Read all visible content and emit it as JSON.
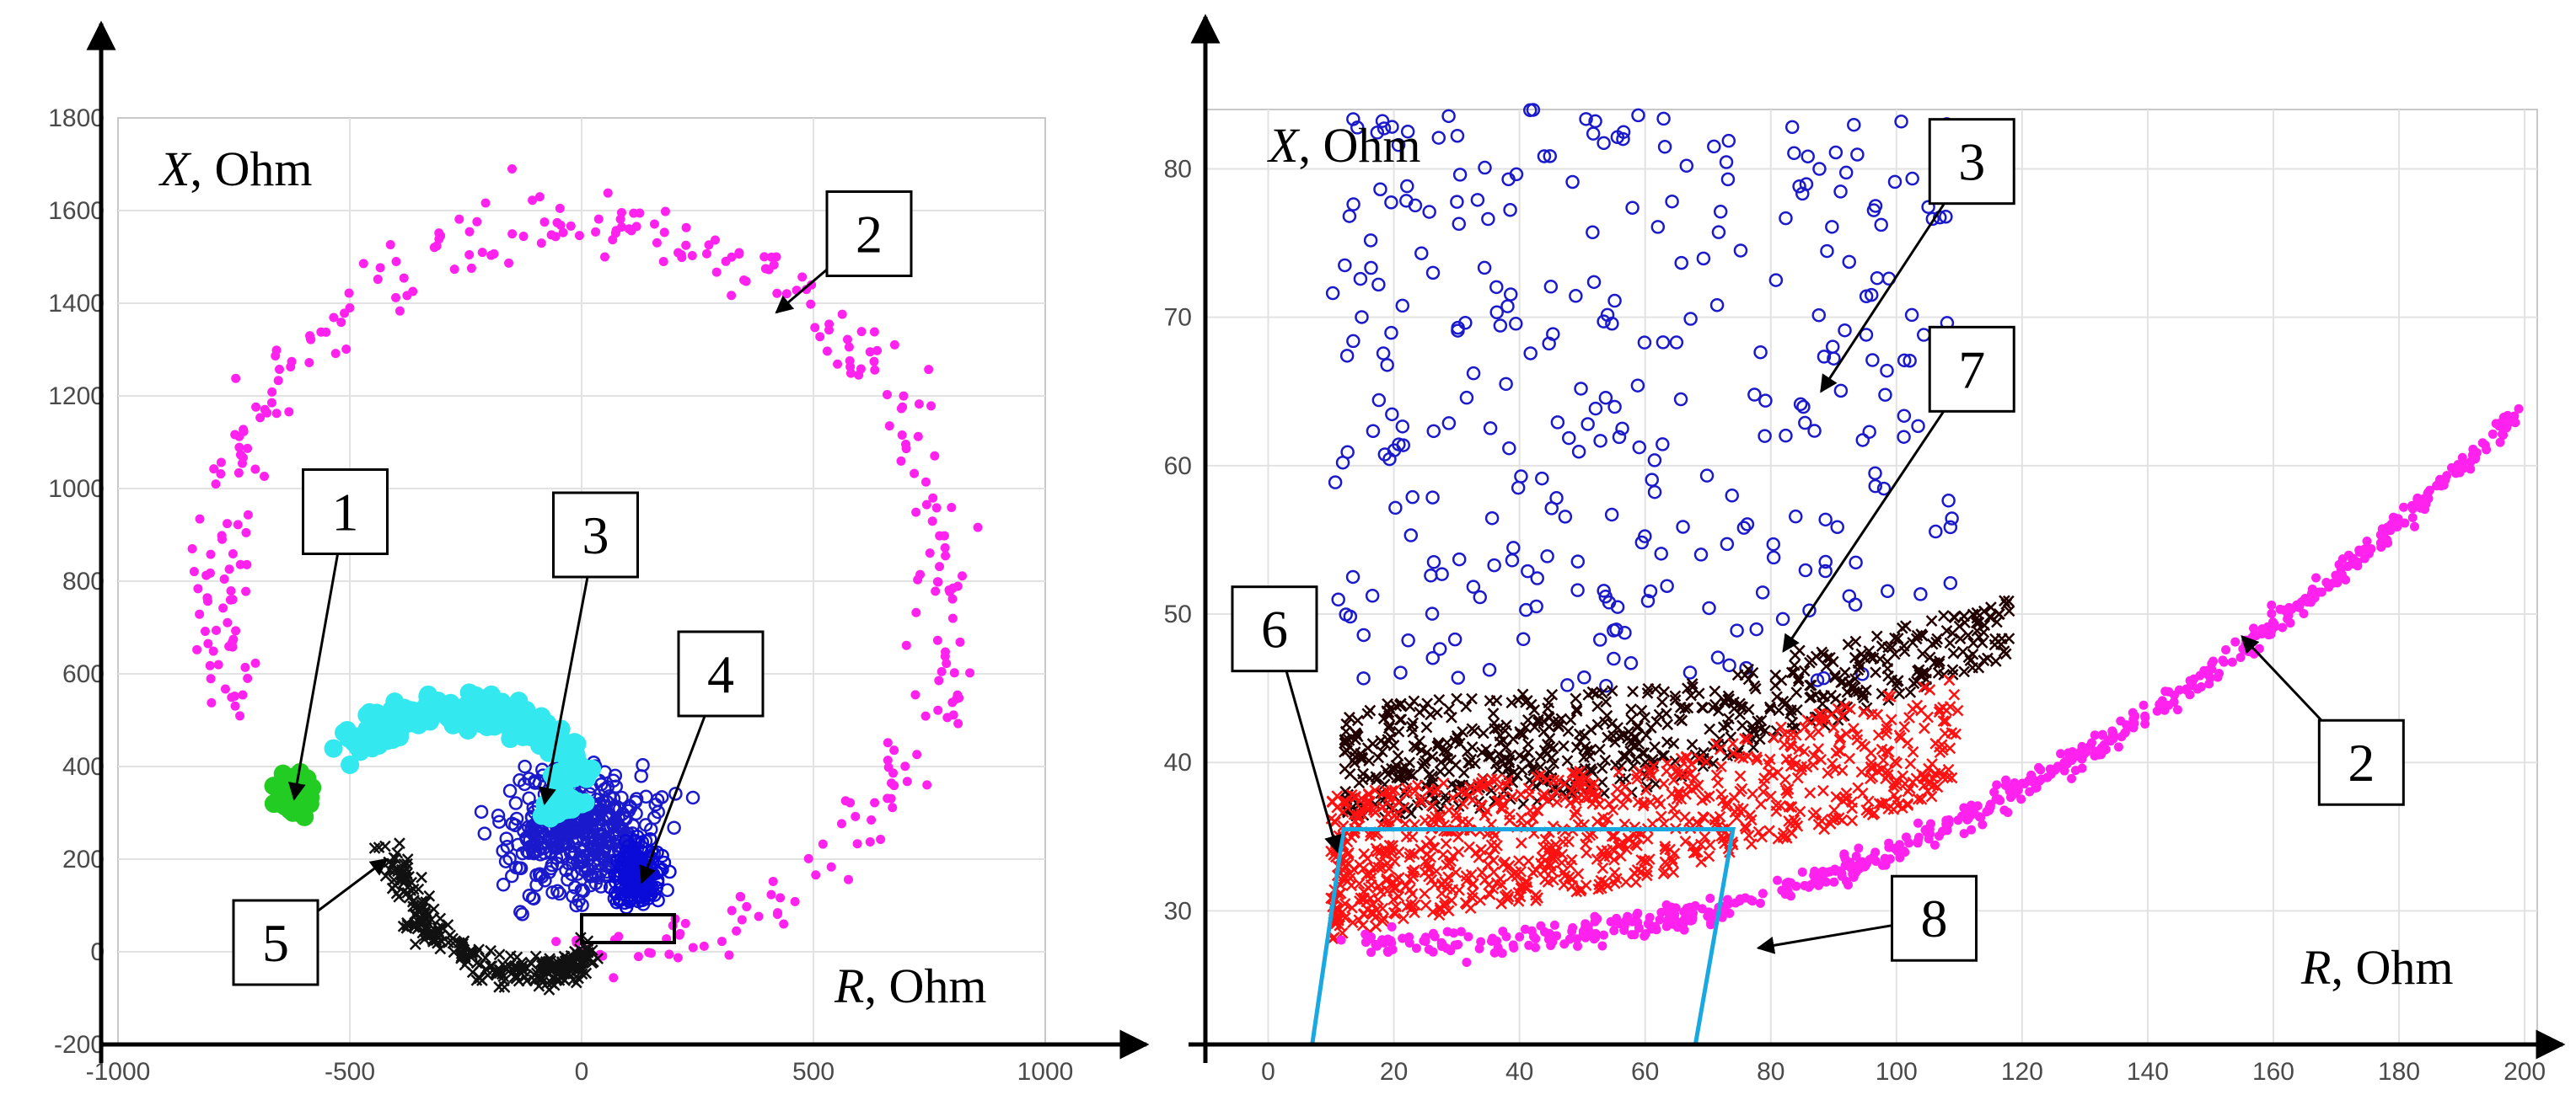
{
  "chart_data": [
    {
      "type": "scatter",
      "title": "",
      "xlabel": "R, Ohm",
      "ylabel": "X, Ohm",
      "xlabel_var": "R",
      "xlabel_unit": ", Ohm",
      "ylabel_var": "X",
      "ylabel_unit": ", Ohm",
      "xlim": [
        -1000,
        1000
      ],
      "ylim": [
        -200,
        1800
      ],
      "xticks": [
        -1000,
        -500,
        0,
        500,
        1000
      ],
      "yticks": [
        -200,
        0,
        200,
        400,
        600,
        800,
        1000,
        1200,
        1400,
        1600,
        1800
      ],
      "grid": true,
      "series": [
        {
          "name": "1",
          "color": "#22cc22",
          "marker": "filled",
          "generator": "blob",
          "center": [
            -620,
            340
          ],
          "spread": [
            35,
            40
          ],
          "n": 120
        },
        {
          "name": "2",
          "color": "#ff22ee",
          "marker": "dot",
          "generator": "arc",
          "center": [
            0,
            780
          ],
          "radius": [
            750,
            820
          ],
          "angle_deg": [
            -90,
            200
          ],
          "jitter": 60,
          "n": 330,
          "extra": [
            [
              -500,
              1390
            ],
            [
              -400,
              1490
            ],
            [
              -150,
              1690
            ],
            [
              350,
              1450
            ],
            [
              420,
              1500
            ],
            [
              50,
              1500
            ]
          ]
        },
        {
          "name": "3",
          "color": "#1a1acc",
          "marker": "ring",
          "generator": "cluster",
          "center": [
            0,
            260
          ],
          "spread": [
            170,
            150
          ],
          "n": 420
        },
        {
          "name": "3 (cyan)",
          "color": "#33e8ee",
          "marker": "filled",
          "generator": "band",
          "path": [
            [
              -500,
              440
            ],
            [
              -350,
              520
            ],
            [
              -150,
              510
            ],
            [
              0,
              410
            ],
            [
              -50,
              300
            ]
          ],
          "width": 70,
          "n": 260
        },
        {
          "name": "4",
          "color": "#0b0bd8",
          "marker": "ring",
          "generator": "blob",
          "center": [
            120,
            170
          ],
          "spread": [
            55,
            70
          ],
          "n": 160
        },
        {
          "name": "5",
          "color": "#111111",
          "marker": "cross",
          "generator": "band",
          "path": [
            [
              -420,
              220
            ],
            [
              -340,
              60
            ],
            [
              -200,
              -40
            ],
            [
              -50,
              -40
            ],
            [
              10,
              0
            ]
          ],
          "width": 55,
          "n": 300
        }
      ],
      "callouts": [
        {
          "label": "1",
          "box": [
            -510,
            950
          ],
          "target": [
            -620,
            330
          ]
        },
        {
          "label": "2",
          "box": [
            620,
            1550
          ],
          "target": [
            420,
            1380
          ]
        },
        {
          "label": "3",
          "box": [
            30,
            900
          ],
          "target": [
            -80,
            320
          ]
        },
        {
          "label": "4",
          "box": [
            300,
            600
          ],
          "target": [
            130,
            150
          ]
        },
        {
          "label": "5",
          "box": [
            -660,
            20
          ],
          "target": [
            -420,
            200
          ]
        }
      ],
      "zoom_region": {
        "x": [
          0,
          200
        ],
        "y": [
          20,
          80
        ]
      }
    },
    {
      "type": "scatter",
      "title": "",
      "xlabel": "R, Ohm",
      "ylabel": "X, Ohm",
      "xlabel_var": "R",
      "xlabel_unit": ", Ohm",
      "ylabel_var": "X",
      "ylabel_unit": ", Ohm",
      "xlim": [
        -10,
        202
      ],
      "ylim": [
        21,
        84
      ],
      "xticks": [
        0,
        20,
        40,
        60,
        80,
        100,
        120,
        140,
        160,
        180,
        200
      ],
      "yticks": [
        30,
        40,
        50,
        60,
        70,
        80
      ],
      "grid": true,
      "series": [
        {
          "name": "3",
          "color": "#1a1acc",
          "marker": "ring",
          "generator": "box",
          "x": [
            10,
            110
          ],
          "y": [
            45,
            84
          ],
          "n": 300
        },
        {
          "name": "7",
          "color": "#220000",
          "marker": "cross",
          "generator": "wedge",
          "x": [
            12,
            118
          ],
          "top": [
            [
              12,
              44
            ],
            [
              60,
              45
            ],
            [
              118,
              51
            ]
          ],
          "bottom": [
            [
              12,
              36
            ],
            [
              60,
              38
            ],
            [
              118,
              47
            ]
          ],
          "n": 650
        },
        {
          "name": "red",
          "color": "#ff1111",
          "marker": "cross",
          "generator": "wedge",
          "x": [
            10,
            110
          ],
          "top": [
            [
              10,
              38
            ],
            [
              60,
              40
            ],
            [
              110,
              46
            ]
          ],
          "bottom": [
            [
              10,
              28
            ],
            [
              60,
              32
            ],
            [
              110,
              38
            ]
          ],
          "n": 900
        },
        {
          "name": "2",
          "color": "#ff22ee",
          "marker": "dot",
          "generator": "line",
          "from": [
            10,
            28
          ],
          "to": [
            200,
            64
          ],
          "curve": 0.004,
          "jitter": 1.0,
          "n": 600
        }
      ],
      "region": {
        "name": "8",
        "color": "#1aa8e0",
        "points": [
          [
            7,
            21
          ],
          [
            12,
            35.5
          ],
          [
            74,
            35.5
          ],
          [
            68,
            21
          ]
        ]
      },
      "callouts": [
        {
          "label": "3",
          "box": [
            112,
            80.5
          ],
          "target": [
            88,
            65
          ]
        },
        {
          "label": "7",
          "box": [
            112,
            66.5
          ],
          "target": [
            82,
            47.5
          ]
        },
        {
          "label": "6",
          "box": [
            1,
            49
          ],
          "target": [
            11,
            34
          ]
        },
        {
          "label": "2",
          "box": [
            174,
            40
          ],
          "target": [
            155,
            48.5
          ]
        },
        {
          "label": "8",
          "box": [
            106,
            29.5
          ],
          "target": [
            78,
            27.5
          ]
        }
      ]
    }
  ]
}
